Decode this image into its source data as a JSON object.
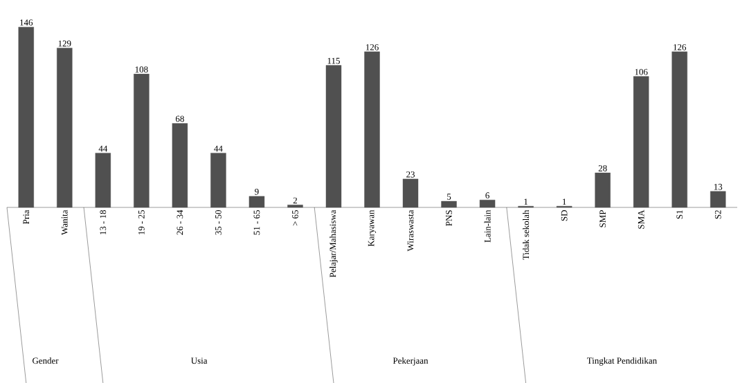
{
  "chart_data": {
    "type": "bar",
    "categories": [
      "Pria",
      "Wanita",
      "13 - 18",
      "19 - 25",
      "26 - 34",
      "35 - 50",
      "51 - 65",
      "> 65",
      "Pelajar/Mahasiswa",
      "Karyawan",
      "Wiraswasta",
      "PNS",
      "Lain-lain",
      "Tidak sekolah",
      "SD",
      "SMP",
      "SMA",
      "S1",
      "S2"
    ],
    "values": [
      146,
      129,
      44,
      108,
      68,
      44,
      9,
      2,
      115,
      126,
      23,
      5,
      6,
      1,
      1,
      28,
      106,
      126,
      13
    ],
    "color": "#505050",
    "data_labels": true,
    "annotations": [
      "Gender",
      "Usia",
      "Pekerjaan",
      "Tingkat Pendidikan"
    ]
  }
}
